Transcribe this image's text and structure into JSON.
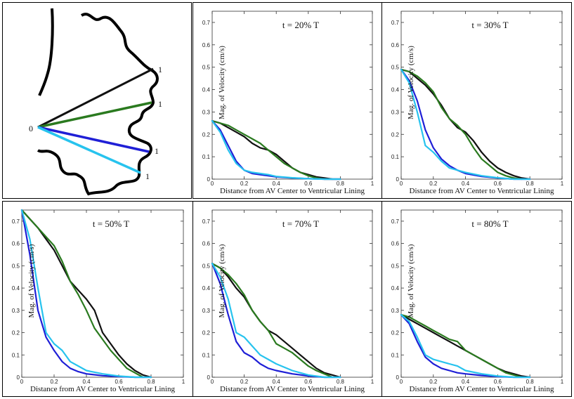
{
  "colors": {
    "black": "#111111",
    "green": "#2a7a1f",
    "blue": "#1f1fd6",
    "cyan": "#27c3ee"
  },
  "diagram": {
    "origin_label": "0",
    "end_labels": [
      "1",
      "1",
      "1",
      "1"
    ]
  },
  "chart_data": [
    {
      "type": "line",
      "title": "t = 20% T",
      "xlabel": "Distance from AV Center to Ventricular Lining",
      "ylabel": "Mag. of Velocity (cm/s)",
      "xlim": [
        0,
        1
      ],
      "ylim": [
        0,
        0.75
      ],
      "xticks": [
        "0",
        "0.2",
        "0.4",
        "0.6",
        "0.8",
        "1"
      ],
      "yticks": [
        "0",
        "0.1",
        "0.2",
        "0.3",
        "0.4",
        "0.5",
        "0.6",
        "0.7"
      ],
      "series": [
        {
          "name": "black",
          "x": [
            0,
            0.05,
            0.1,
            0.15,
            0.2,
            0.25,
            0.3,
            0.35,
            0.4,
            0.45,
            0.5,
            0.55,
            0.6,
            0.65,
            0.7,
            0.75,
            0.8
          ],
          "y": [
            0.26,
            0.25,
            0.23,
            0.21,
            0.19,
            0.16,
            0.14,
            0.13,
            0.11,
            0.08,
            0.05,
            0.03,
            0.02,
            0.01,
            0.005,
            0,
            0
          ]
        },
        {
          "name": "green",
          "x": [
            0,
            0.05,
            0.1,
            0.15,
            0.2,
            0.25,
            0.3,
            0.35,
            0.4,
            0.45,
            0.5,
            0.55,
            0.6,
            0.65,
            0.7,
            0.75
          ],
          "y": [
            0.26,
            0.25,
            0.24,
            0.22,
            0.2,
            0.18,
            0.16,
            0.13,
            0.1,
            0.07,
            0.05,
            0.03,
            0.015,
            0.005,
            0,
            0
          ]
        },
        {
          "name": "blue",
          "x": [
            0,
            0.05,
            0.1,
            0.15,
            0.2,
            0.25,
            0.3,
            0.35,
            0.4,
            0.5,
            0.6,
            0.7,
            0.8
          ],
          "y": [
            0.26,
            0.22,
            0.15,
            0.08,
            0.04,
            0.025,
            0.02,
            0.015,
            0.01,
            0.005,
            0.002,
            0,
            0
          ]
        },
        {
          "name": "cyan",
          "x": [
            0,
            0.05,
            0.1,
            0.15,
            0.2,
            0.25,
            0.3,
            0.35,
            0.4,
            0.5,
            0.6,
            0.7,
            0.8
          ],
          "y": [
            0.26,
            0.21,
            0.13,
            0.07,
            0.04,
            0.03,
            0.025,
            0.02,
            0.012,
            0.006,
            0.002,
            0,
            0
          ]
        }
      ]
    },
    {
      "type": "line",
      "title": "t = 30% T",
      "xlabel": "Distance from AV Center to Ventricular Lining",
      "ylabel": "Mag. of Velocity (cm/s)",
      "xlim": [
        0,
        1
      ],
      "ylim": [
        0,
        0.75
      ],
      "xticks": [
        "0",
        "0.2",
        "0.4",
        "0.6",
        "0.8",
        "1"
      ],
      "yticks": [
        "0",
        "0.1",
        "0.2",
        "0.3",
        "0.4",
        "0.5",
        "0.6",
        "0.7"
      ],
      "series": [
        {
          "name": "black",
          "x": [
            0,
            0.05,
            0.1,
            0.15,
            0.2,
            0.25,
            0.3,
            0.35,
            0.4,
            0.45,
            0.5,
            0.55,
            0.6,
            0.65,
            0.7,
            0.75,
            0.8
          ],
          "y": [
            0.49,
            0.48,
            0.45,
            0.42,
            0.38,
            0.33,
            0.27,
            0.23,
            0.21,
            0.17,
            0.12,
            0.08,
            0.05,
            0.03,
            0.015,
            0.005,
            0
          ]
        },
        {
          "name": "green",
          "x": [
            0,
            0.05,
            0.1,
            0.15,
            0.2,
            0.25,
            0.3,
            0.35,
            0.4,
            0.45,
            0.5,
            0.55,
            0.6,
            0.65,
            0.7,
            0.75
          ],
          "y": [
            0.49,
            0.48,
            0.46,
            0.43,
            0.39,
            0.32,
            0.27,
            0.24,
            0.2,
            0.14,
            0.09,
            0.06,
            0.03,
            0.015,
            0.005,
            0
          ]
        },
        {
          "name": "blue",
          "x": [
            0,
            0.05,
            0.1,
            0.15,
            0.2,
            0.25,
            0.3,
            0.35,
            0.4,
            0.5,
            0.6,
            0.7,
            0.8
          ],
          "y": [
            0.49,
            0.44,
            0.35,
            0.22,
            0.14,
            0.09,
            0.06,
            0.04,
            0.025,
            0.012,
            0.005,
            0,
            0
          ]
        },
        {
          "name": "cyan",
          "x": [
            0,
            0.05,
            0.1,
            0.15,
            0.2,
            0.25,
            0.3,
            0.35,
            0.4,
            0.5,
            0.6,
            0.7,
            0.8
          ],
          "y": [
            0.49,
            0.43,
            0.3,
            0.15,
            0.12,
            0.08,
            0.05,
            0.04,
            0.03,
            0.015,
            0.006,
            0,
            0
          ]
        }
      ]
    },
    {
      "type": "line",
      "title": "t = 50% T",
      "xlabel": "Distance from AV Center to Ventricular Lining",
      "ylabel": "Mag. of Velocity (cm/s)",
      "xlim": [
        0,
        1
      ],
      "ylim": [
        0,
        0.75
      ],
      "xticks": [
        "0",
        "0.2",
        "0.4",
        "0.6",
        "0.8",
        "1"
      ],
      "yticks": [
        "0",
        "0.1",
        "0.2",
        "0.3",
        "0.4",
        "0.5",
        "0.6",
        "0.7"
      ],
      "series": [
        {
          "name": "black",
          "x": [
            0,
            0.05,
            0.1,
            0.15,
            0.2,
            0.25,
            0.3,
            0.35,
            0.4,
            0.45,
            0.5,
            0.55,
            0.6,
            0.65,
            0.7,
            0.75,
            0.8
          ],
          "y": [
            0.75,
            0.71,
            0.67,
            0.62,
            0.57,
            0.5,
            0.43,
            0.39,
            0.35,
            0.3,
            0.2,
            0.15,
            0.1,
            0.06,
            0.03,
            0.01,
            0
          ]
        },
        {
          "name": "green",
          "x": [
            0,
            0.05,
            0.1,
            0.15,
            0.2,
            0.25,
            0.3,
            0.35,
            0.4,
            0.45,
            0.5,
            0.55,
            0.6,
            0.65,
            0.7,
            0.75
          ],
          "y": [
            0.75,
            0.71,
            0.67,
            0.63,
            0.59,
            0.52,
            0.43,
            0.37,
            0.3,
            0.22,
            0.17,
            0.12,
            0.08,
            0.04,
            0.02,
            0
          ]
        },
        {
          "name": "blue",
          "x": [
            0,
            0.05,
            0.1,
            0.15,
            0.2,
            0.25,
            0.3,
            0.35,
            0.4,
            0.5,
            0.6,
            0.7,
            0.8
          ],
          "y": [
            0.75,
            0.55,
            0.3,
            0.18,
            0.12,
            0.07,
            0.04,
            0.025,
            0.015,
            0.007,
            0.003,
            0,
            0
          ]
        },
        {
          "name": "cyan",
          "x": [
            0,
            0.05,
            0.1,
            0.15,
            0.2,
            0.25,
            0.3,
            0.35,
            0.4,
            0.5,
            0.6,
            0.7,
            0.8
          ],
          "y": [
            0.75,
            0.62,
            0.4,
            0.2,
            0.15,
            0.12,
            0.07,
            0.05,
            0.03,
            0.015,
            0.005,
            0,
            0
          ]
        }
      ]
    },
    {
      "type": "line",
      "title": "t = 70% T",
      "xlabel": "Distance from AV Center to Ventricular Lining",
      "ylabel": "Mag. of Velocity (cm/s)",
      "xlim": [
        0,
        1
      ],
      "ylim": [
        0,
        0.75
      ],
      "xticks": [
        "0",
        "0.2",
        "0.4",
        "0.6",
        "0.8",
        "1"
      ],
      "yticks": [
        "0",
        "0.1",
        "0.2",
        "0.3",
        "0.4",
        "0.5",
        "0.6",
        "0.7"
      ],
      "series": [
        {
          "name": "black",
          "x": [
            0,
            0.05,
            0.1,
            0.15,
            0.2,
            0.25,
            0.3,
            0.35,
            0.4,
            0.45,
            0.5,
            0.55,
            0.6,
            0.65,
            0.7,
            0.75,
            0.8
          ],
          "y": [
            0.51,
            0.49,
            0.45,
            0.4,
            0.36,
            0.3,
            0.25,
            0.21,
            0.19,
            0.16,
            0.13,
            0.1,
            0.07,
            0.04,
            0.02,
            0.01,
            0
          ]
        },
        {
          "name": "green",
          "x": [
            0,
            0.05,
            0.1,
            0.15,
            0.2,
            0.25,
            0.3,
            0.35,
            0.4,
            0.45,
            0.5,
            0.55,
            0.6,
            0.65,
            0.7,
            0.75
          ],
          "y": [
            0.51,
            0.49,
            0.46,
            0.42,
            0.37,
            0.3,
            0.25,
            0.21,
            0.15,
            0.13,
            0.11,
            0.08,
            0.05,
            0.03,
            0.015,
            0
          ]
        },
        {
          "name": "blue",
          "x": [
            0,
            0.05,
            0.1,
            0.15,
            0.2,
            0.25,
            0.3,
            0.35,
            0.4,
            0.5,
            0.6,
            0.7,
            0.8
          ],
          "y": [
            0.51,
            0.42,
            0.28,
            0.16,
            0.11,
            0.09,
            0.06,
            0.04,
            0.03,
            0.015,
            0.006,
            0,
            0
          ]
        },
        {
          "name": "cyan",
          "x": [
            0,
            0.05,
            0.1,
            0.15,
            0.2,
            0.25,
            0.3,
            0.35,
            0.4,
            0.5,
            0.6,
            0.7,
            0.8
          ],
          "y": [
            0.51,
            0.45,
            0.35,
            0.2,
            0.18,
            0.14,
            0.1,
            0.08,
            0.06,
            0.03,
            0.01,
            0,
            0
          ]
        }
      ]
    },
    {
      "type": "line",
      "title": "t = 80% T",
      "xlabel": "Distance from AV Center to Ventricular Lining",
      "ylabel": "Mag. of Velocity (cm/s)",
      "xlim": [
        0,
        1
      ],
      "ylim": [
        0,
        0.75
      ],
      "xticks": [
        "0",
        "0.2",
        "0.4",
        "0.6",
        "0.8",
        "1"
      ],
      "yticks": [
        "0",
        "0.1",
        "0.2",
        "0.3",
        "0.4",
        "0.5",
        "0.6",
        "0.7"
      ],
      "series": [
        {
          "name": "black",
          "x": [
            0,
            0.05,
            0.1,
            0.15,
            0.2,
            0.25,
            0.3,
            0.35,
            0.4,
            0.45,
            0.5,
            0.55,
            0.6,
            0.65,
            0.7,
            0.75,
            0.8
          ],
          "y": [
            0.28,
            0.26,
            0.24,
            0.22,
            0.2,
            0.18,
            0.16,
            0.14,
            0.12,
            0.1,
            0.08,
            0.06,
            0.04,
            0.025,
            0.015,
            0.005,
            0
          ]
        },
        {
          "name": "green",
          "x": [
            0,
            0.05,
            0.1,
            0.15,
            0.2,
            0.25,
            0.3,
            0.35,
            0.4,
            0.45,
            0.5,
            0.55,
            0.6,
            0.65,
            0.7,
            0.75
          ],
          "y": [
            0.28,
            0.27,
            0.25,
            0.23,
            0.21,
            0.19,
            0.17,
            0.16,
            0.12,
            0.1,
            0.08,
            0.06,
            0.04,
            0.02,
            0.01,
            0
          ]
        },
        {
          "name": "blue",
          "x": [
            0,
            0.05,
            0.1,
            0.15,
            0.2,
            0.25,
            0.3,
            0.35,
            0.4,
            0.5,
            0.6,
            0.7,
            0.8
          ],
          "y": [
            0.28,
            0.24,
            0.16,
            0.09,
            0.06,
            0.04,
            0.03,
            0.02,
            0.015,
            0.008,
            0.003,
            0,
            0
          ]
        },
        {
          "name": "cyan",
          "x": [
            0,
            0.05,
            0.1,
            0.15,
            0.2,
            0.25,
            0.3,
            0.35,
            0.4,
            0.5,
            0.6,
            0.7,
            0.8
          ],
          "y": [
            0.28,
            0.25,
            0.18,
            0.1,
            0.08,
            0.07,
            0.06,
            0.05,
            0.03,
            0.015,
            0.005,
            0,
            0
          ]
        }
      ]
    }
  ]
}
